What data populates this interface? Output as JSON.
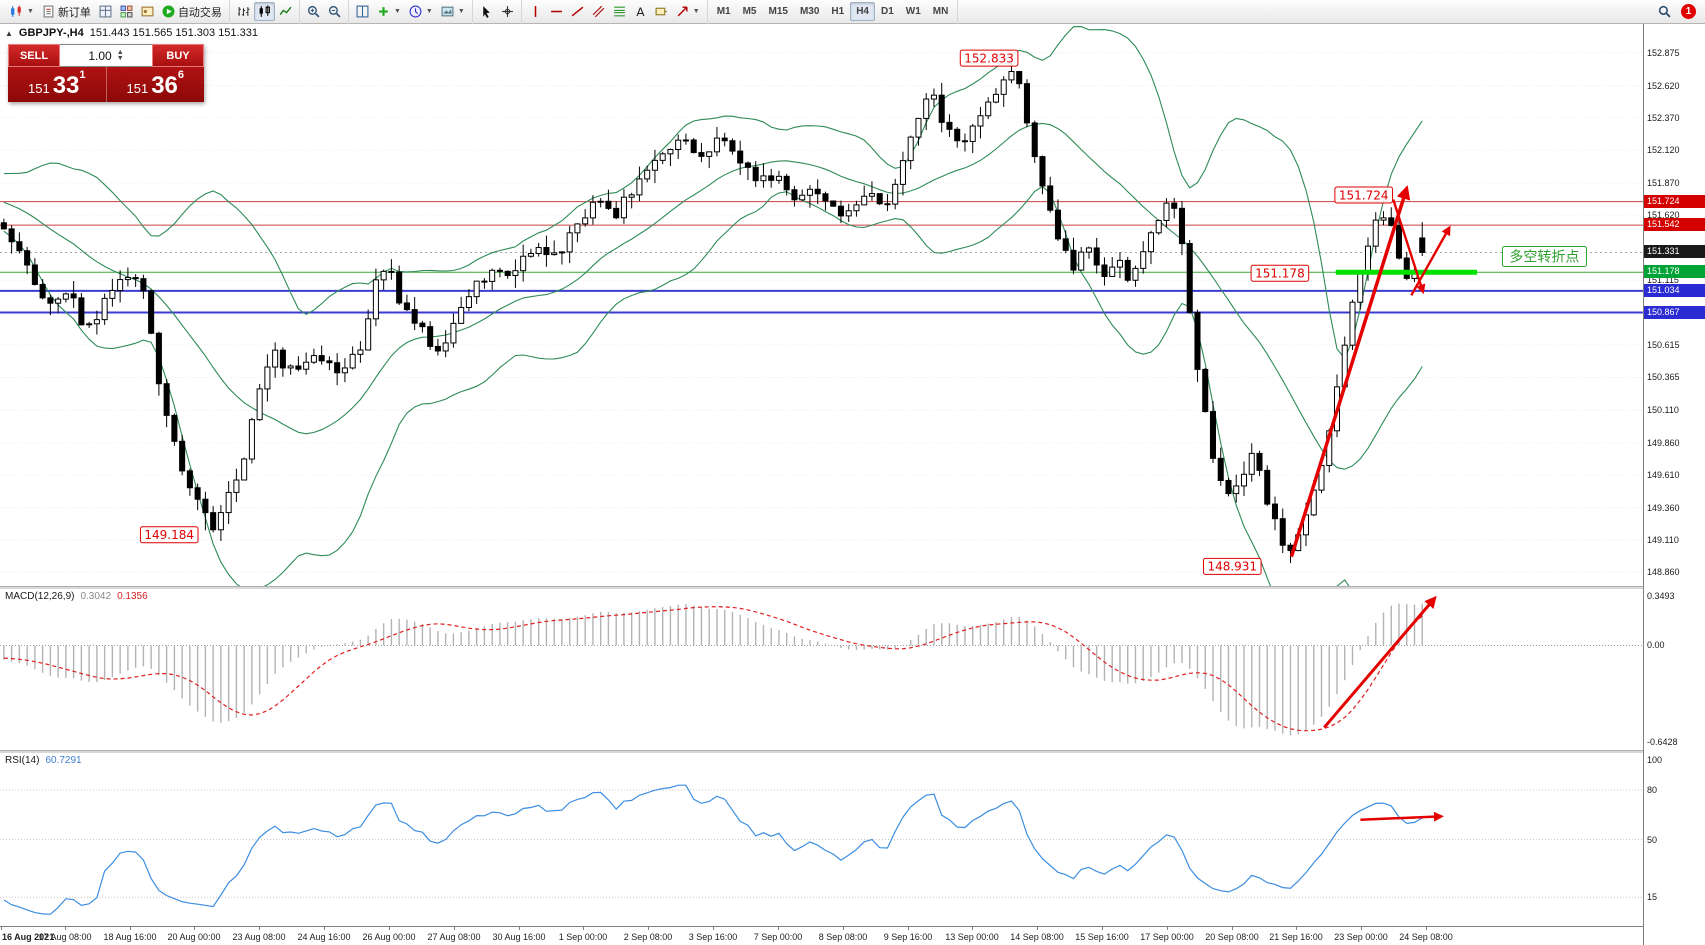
{
  "toolbar": {
    "groups": [
      {
        "items": [
          {
            "name": "new-chart-button",
            "icon": "candles",
            "caret": true
          },
          {
            "name": "new-order-button",
            "icon": "doc",
            "label": "新订单"
          },
          {
            "name": "market-watch-button",
            "icon": "grid"
          },
          {
            "name": "data-window-button",
            "icon": "tile"
          },
          {
            "name": "navigator-button",
            "icon": "nav"
          },
          {
            "name": "auto-trading-button",
            "icon": "play",
            "label": "自动交易"
          }
        ]
      },
      {
        "items": [
          {
            "name": "bar-chart-button",
            "icon": "bars"
          },
          {
            "name": "candlestick-chart-button",
            "icon": "candles2",
            "active": true
          },
          {
            "name": "line-chart-button",
            "icon": "line"
          }
        ]
      },
      {
        "items": [
          {
            "name": "zoom-in-button",
            "icon": "zoomin"
          },
          {
            "name": "zoom-out-button",
            "icon": "zoomout"
          }
        ]
      },
      {
        "items": [
          {
            "name": "tile-windows-button",
            "icon": "tiles"
          },
          {
            "name": "indicators-button",
            "icon": "plus",
            "caret": true
          },
          {
            "name": "periods-button",
            "icon": "clock",
            "caret": true
          },
          {
            "name": "templates-button",
            "icon": "image",
            "caret": true
          }
        ]
      },
      {
        "items": [
          {
            "name": "cursor-button",
            "icon": "cursor"
          },
          {
            "name": "crosshair-button",
            "icon": "crosshair"
          }
        ]
      },
      {
        "items": [
          {
            "name": "vertical-line-button",
            "icon": "vline"
          },
          {
            "name": "horizontal-line-button",
            "icon": "hline"
          },
          {
            "name": "trendline-button",
            "icon": "tline"
          },
          {
            "name": "equidistant-channel-button",
            "icon": "channel"
          },
          {
            "name": "fibonacci-button",
            "icon": "fibo"
          },
          {
            "name": "text-button",
            "icon": "textA"
          },
          {
            "name": "text-label-button",
            "icon": "label"
          },
          {
            "name": "arrows-button",
            "icon": "arrowdraw",
            "caret": true
          }
        ]
      }
    ],
    "timeframes": [
      {
        "label": "M1"
      },
      {
        "label": "M5"
      },
      {
        "label": "M15"
      },
      {
        "label": "M30"
      },
      {
        "label": "H1"
      },
      {
        "label": "H4",
        "active": true
      },
      {
        "label": "D1"
      },
      {
        "label": "W1"
      },
      {
        "label": "MN"
      }
    ],
    "notification_badge": "1"
  },
  "trade_panel": {
    "sell_label": "SELL",
    "buy_label": "BUY",
    "volume": "1.00",
    "sell_big": "151",
    "sell_pips": "33",
    "sell_sup": "1",
    "buy_big": "151",
    "buy_pips": "36",
    "buy_sup": "6"
  },
  "chart": {
    "symbol_title": "GBPJPY-,H4",
    "ohlc_text": "151.443 151.565 151.303 151.331"
  },
  "chart_data": {
    "type": "candlestick",
    "symbol": "GBPJPY-",
    "timeframe": "H4",
    "ohlc": {
      "open": 151.443,
      "high": 151.565,
      "low": 151.303,
      "close": 151.331
    },
    "ylim": [
      148.8,
      153.05
    ],
    "num_candles": 184,
    "candle_span_frac": 0.868,
    "path_anchors": [
      [
        0.0,
        151.55
      ],
      [
        0.013,
        151.32
      ],
      [
        0.03,
        150.95
      ],
      [
        0.045,
        151.05
      ],
      [
        0.058,
        150.72
      ],
      [
        0.072,
        150.95
      ],
      [
        0.085,
        151.15
      ],
      [
        0.1,
        151.05
      ],
      [
        0.108,
        150.35
      ],
      [
        0.118,
        149.9
      ],
      [
        0.13,
        149.55
      ],
      [
        0.142,
        149.28
      ],
      [
        0.15,
        149.2
      ],
      [
        0.16,
        149.5
      ],
      [
        0.172,
        149.85
      ],
      [
        0.18,
        150.3
      ],
      [
        0.19,
        150.55
      ],
      [
        0.205,
        150.4
      ],
      [
        0.22,
        150.5
      ],
      [
        0.235,
        150.42
      ],
      [
        0.25,
        150.55
      ],
      [
        0.262,
        151.08
      ],
      [
        0.27,
        151.25
      ],
      [
        0.28,
        150.92
      ],
      [
        0.292,
        150.8
      ],
      [
        0.302,
        150.55
      ],
      [
        0.315,
        150.7
      ],
      [
        0.33,
        151.05
      ],
      [
        0.345,
        151.22
      ],
      [
        0.36,
        151.15
      ],
      [
        0.375,
        151.42
      ],
      [
        0.39,
        151.28
      ],
      [
        0.405,
        151.55
      ],
      [
        0.418,
        151.72
      ],
      [
        0.432,
        151.62
      ],
      [
        0.448,
        151.92
      ],
      [
        0.462,
        152.08
      ],
      [
        0.478,
        152.2
      ],
      [
        0.492,
        152.08
      ],
      [
        0.505,
        152.25
      ],
      [
        0.518,
        152.02
      ],
      [
        0.532,
        151.88
      ],
      [
        0.545,
        151.95
      ],
      [
        0.558,
        151.72
      ],
      [
        0.57,
        151.85
      ],
      [
        0.582,
        151.68
      ],
      [
        0.596,
        151.62
      ],
      [
        0.61,
        151.8
      ],
      [
        0.622,
        151.68
      ],
      [
        0.634,
        152.02
      ],
      [
        0.646,
        152.42
      ],
      [
        0.656,
        152.55
      ],
      [
        0.664,
        152.28
      ],
      [
        0.674,
        152.15
      ],
      [
        0.684,
        152.32
      ],
      [
        0.694,
        152.5
      ],
      [
        0.704,
        152.62
      ],
      [
        0.712,
        152.78
      ],
      [
        0.719,
        152.5
      ],
      [
        0.727,
        152.05
      ],
      [
        0.735,
        151.7
      ],
      [
        0.744,
        151.42
      ],
      [
        0.754,
        151.18
      ],
      [
        0.764,
        151.4
      ],
      [
        0.774,
        151.08
      ],
      [
        0.784,
        151.3
      ],
      [
        0.794,
        151.12
      ],
      [
        0.804,
        151.38
      ],
      [
        0.814,
        151.6
      ],
      [
        0.822,
        151.82
      ],
      [
        0.829,
        151.5
      ],
      [
        0.836,
        150.9
      ],
      [
        0.843,
        150.35
      ],
      [
        0.85,
        149.85
      ],
      [
        0.858,
        149.58
      ],
      [
        0.865,
        149.45
      ],
      [
        0.872,
        149.58
      ],
      [
        0.879,
        149.82
      ],
      [
        0.886,
        149.58
      ],
      [
        0.894,
        149.32
      ],
      [
        0.901,
        149.12
      ],
      [
        0.908,
        148.98
      ],
      [
        0.916,
        149.22
      ],
      [
        0.924,
        149.48
      ],
      [
        0.931,
        149.78
      ],
      [
        0.939,
        150.25
      ],
      [
        0.947,
        150.75
      ],
      [
        0.955,
        151.12
      ],
      [
        0.963,
        151.45
      ],
      [
        0.971,
        151.62
      ],
      [
        0.978,
        151.52
      ],
      [
        0.985,
        151.28
      ],
      [
        0.991,
        151.08
      ],
      [
        0.996,
        151.25
      ],
      [
        1.0,
        151.33
      ]
    ],
    "pinned_extremes": [
      {
        "f": 0.142,
        "type": "low",
        "price": 149.184
      },
      {
        "f": 0.712,
        "type": "high",
        "price": 152.833
      },
      {
        "f": 0.908,
        "type": "low",
        "price": 148.931
      }
    ],
    "bollinger": {
      "period": 20,
      "deviation": 2,
      "color": "#2e8b57"
    },
    "price_ticks": [
      "152.875",
      "152.620",
      "152.370",
      "152.120",
      "151.870",
      "151.620",
      "151.115",
      "150.615",
      "150.365",
      "150.110",
      "149.860",
      "149.610",
      "149.360",
      "149.110",
      "148.860"
    ],
    "price_labels_highlighted": [
      {
        "text": "151.724",
        "price": 151.724,
        "bg": "#d40000"
      },
      {
        "text": "151.542",
        "price": 151.542,
        "bg": "#d40000"
      },
      {
        "text": "151.331",
        "price": 151.331,
        "bg": "#1a1a1a"
      },
      {
        "text": "151.178",
        "price": 151.178,
        "bg": "#00a335"
      },
      {
        "text": "151.034",
        "price": 151.034,
        "bg": "#2b2bd4"
      },
      {
        "text": "150.867",
        "price": 150.867,
        "bg": "#2b2bd4"
      }
    ],
    "hlines": [
      {
        "price": 151.724,
        "color": "#c94040",
        "width": 1
      },
      {
        "price": 151.542,
        "color": "#c94040",
        "width": 1
      },
      {
        "price": 151.331,
        "color": "#a8a8a8",
        "width": 1,
        "dash": "2 3"
      },
      {
        "price": 151.178,
        "color": "#3aa83a",
        "width": 1
      },
      {
        "price": 151.034,
        "color": "#3b3bd1",
        "width": 2
      },
      {
        "price": 150.867,
        "color": "#3b3bd1",
        "width": 2
      }
    ],
    "support_segment": {
      "price": 151.178,
      "x1f": 0.813,
      "x2f": 0.899,
      "color": "#00e100",
      "width": 5
    },
    "annotations": [
      {
        "text": "152.833",
        "xf": 0.602,
        "price": 152.833,
        "style": "red"
      },
      {
        "text": "151.724",
        "xf": 0.83,
        "price": 151.775,
        "style": "red"
      },
      {
        "text": "151.178",
        "xf": 0.779,
        "price": 151.17,
        "style": "red"
      },
      {
        "text": "149.184",
        "xf": 0.103,
        "price": 149.15,
        "style": "red"
      },
      {
        "text": "148.931",
        "xf": 0.75,
        "price": 148.905,
        "style": "red"
      },
      {
        "text": "多空转折点",
        "xf": 0.94,
        "price": 151.3,
        "style": "green"
      }
    ],
    "arrow_color": "#e50000",
    "arrows_main": [
      {
        "x1f": 0.786,
        "p1": 148.98,
        "x2f": 0.856,
        "p2": 151.82,
        "w": 3.5
      },
      {
        "x1f": 0.848,
        "p1": 151.74,
        "x2f": 0.866,
        "p2": 151.03,
        "w": 2.4
      },
      {
        "x1f": 0.859,
        "p1": 151.0,
        "x2f": 0.882,
        "p2": 151.52,
        "w": 2.4
      }
    ],
    "macd": {
      "label": "MACD(12,26,9)",
      "value_main": "0.3042",
      "value_signal": "0.1356",
      "axis_top": "0.3493",
      "axis_zero": "0.00",
      "axis_bottom": "-0.6428",
      "fast": 12,
      "slow": 26,
      "signal": 9,
      "hist_color": "#b3b3b3",
      "signal_color": "#e02020",
      "arrow": {
        "x1f": 0.806,
        "y1": 0.86,
        "x2f": 0.873,
        "y2": 0.06
      }
    },
    "rsi": {
      "label": "RSI(14)",
      "value": "60.7291",
      "period": 14,
      "axis_ticks": [
        100,
        80,
        50,
        15
      ],
      "levels": [
        80,
        50,
        15
      ],
      "line_color": "#3c8ee0",
      "arrow": {
        "x1f": 0.828,
        "v1": 62,
        "x2f": 0.877,
        "v2": 64
      }
    },
    "time_labels": [
      "16 Aug 2021",
      "17 Aug 08:00",
      "18 Aug 16:00",
      "20 Aug 00:00",
      "23 Aug 08:00",
      "24 Aug 16:00",
      "26 Aug 00:00",
      "27 Aug 08:00",
      "30 Aug 16:00",
      "1 Sep 00:00",
      "2 Sep 08:00",
      "3 Sep 16:00",
      "7 Sep 00:00",
      "8 Sep 08:00",
      "9 Sep 16:00",
      "13 Sep 00:00",
      "14 Sep 08:00",
      "15 Sep 16:00",
      "17 Sep 00:00",
      "20 Sep 08:00",
      "21 Sep 16:00",
      "23 Sep 00:00",
      "24 Sep 08:00"
    ]
  }
}
